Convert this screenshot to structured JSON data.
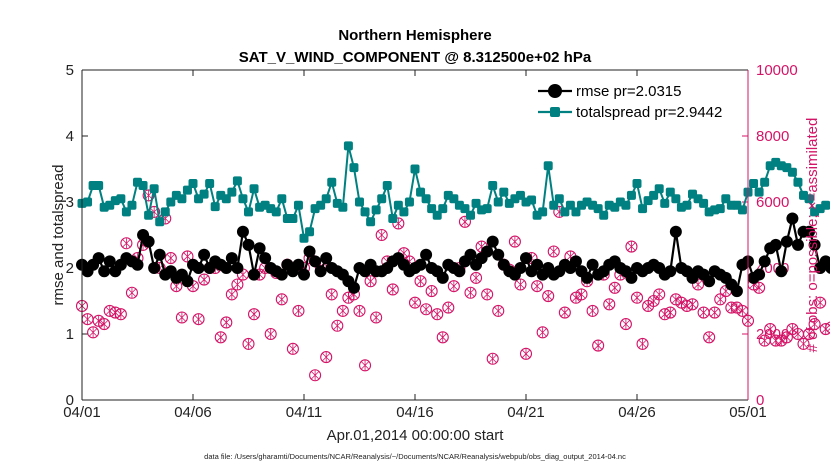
{
  "chart_data": {
    "type": "line",
    "title": "Northern Hemisphere",
    "subtitle": "SAT_V_WIND_COMPONENT @ 8.312500e+02 hPa",
    "xlabel": "Apr.01,2014 00:00:00 start",
    "ylabel": "rmse and totalspread",
    "ylabel_right": "# of obs: o=possible; ×=assimilated",
    "footnote": "data file: /Users/gharamti/Documents/NCAR/Reanalysis/~/Documents/NCAR/Reanalysis/webpub/obs_diag_output_2014-04.nc",
    "x_tick_labels": [
      "04/01",
      "04/06",
      "04/11",
      "04/16",
      "04/21",
      "04/26",
      "05/01"
    ],
    "x_tick_days": [
      0,
      5,
      10,
      15,
      20,
      25,
      30
    ],
    "xlim": [
      0,
      30
    ],
    "ylim": [
      0,
      5
    ],
    "yticks": [
      0,
      1,
      2,
      3,
      4,
      5
    ],
    "ylim_right": [
      0,
      10000
    ],
    "yticks_right": [
      0,
      2000,
      4000,
      6000,
      8000,
      10000
    ],
    "x_step_days": 0.25,
    "colors": {
      "rmse": "#000000",
      "totalspread": "#008080",
      "obs": "#d41467"
    },
    "legend": [
      {
        "name": "rmse",
        "label": "rmse pr=2.0315",
        "color": "#000000"
      },
      {
        "name": "totalspread",
        "label": "totalspread pr=2.9442",
        "color": "#008080"
      }
    ],
    "legend_position": "top-right",
    "series": [
      {
        "name": "totalspread",
        "values": [
          2.98,
          3.0,
          3.25,
          3.25,
          2.92,
          2.95,
          3.02,
          3.05,
          2.85,
          2.95,
          3.3,
          3.25,
          2.8,
          3.2,
          2.7,
          2.85,
          3.0,
          3.1,
          3.05,
          3.18,
          3.28,
          3.05,
          3.12,
          3.28,
          2.93,
          3.1,
          3.05,
          3.15,
          3.32,
          3.05,
          2.85,
          3.2,
          2.92,
          2.95,
          2.9,
          2.85,
          3.05,
          2.75,
          2.75,
          2.95,
          2.45,
          2.55,
          2.9,
          2.95,
          3.05,
          3.3,
          2.98,
          2.92,
          3.85,
          3.52,
          3.0,
          2.85,
          2.7,
          2.88,
          3.05,
          3.25,
          2.75,
          2.95,
          2.85,
          3.0,
          3.5,
          3.15,
          3.05,
          2.9,
          2.8,
          2.9,
          3.1,
          3.05,
          2.95,
          2.9,
          2.8,
          2.98,
          2.88,
          2.9,
          3.25,
          3.0,
          3.15,
          2.98,
          3.05,
          3.1,
          3.0,
          3.03,
          2.8,
          2.85,
          3.55,
          2.95,
          3.05,
          2.85,
          2.95,
          2.85,
          2.95,
          3.0,
          2.95,
          2.9,
          2.8,
          2.95,
          2.92,
          3.0,
          2.95,
          3.1,
          3.28,
          2.9,
          3.02,
          3.1,
          3.2,
          2.98,
          3.15,
          3.05,
          2.92,
          2.95,
          3.12,
          3.05,
          2.98,
          2.85,
          2.88,
          2.9,
          3.05,
          2.95,
          2.95,
          2.88,
          3.15,
          3.28,
          3.15,
          3.3,
          3.55,
          3.6,
          3.55,
          3.52,
          3.45,
          3.3,
          3.1,
          3.05,
          2.85,
          2.9,
          2.95
        ],
        "color": "#008080"
      },
      {
        "name": "rmse",
        "values": [
          2.05,
          1.95,
          2.05,
          2.15,
          1.95,
          2.1,
          1.95,
          2.05,
          2.15,
          2.1,
          2.05,
          2.5,
          2.4,
          2.0,
          2.2,
          1.9,
          1.95,
          1.85,
          1.9,
          1.8,
          2.05,
          2.0,
          2.2,
          2.0,
          2.1,
          2.05,
          2.0,
          2.15,
          2.0,
          2.55,
          2.35,
          1.9,
          2.3,
          2.15,
          2.0,
          1.95,
          1.9,
          2.05,
          1.95,
          2.05,
          1.9,
          2.25,
          2.1,
          1.95,
          2.15,
          2.0,
          1.95,
          1.9,
          1.8,
          1.7,
          2.0,
          1.95,
          2.05,
          1.95,
          1.95,
          2.0,
          2.1,
          2.15,
          2.05,
          1.95,
          2.0,
          2.05,
          2.2,
          2.0,
          1.95,
          1.85,
          2.05,
          2.0,
          1.95,
          2.1,
          2.2,
          2.05,
          2.15,
          2.25,
          2.4,
          2.2,
          2.05,
          1.95,
          1.9,
          2.0,
          2.15,
          1.95,
          2.05,
          1.9,
          2.0,
          1.9,
          1.95,
          2.05,
          2.0,
          2.1,
          1.95,
          1.85,
          2.05,
          1.9,
          1.95,
          2.05,
          2.1,
          2.0,
          1.95,
          1.85,
          2.0,
          1.95,
          2.0,
          2.05,
          2.0,
          1.9,
          1.95,
          2.55,
          2.0,
          1.95,
          1.85,
          1.95,
          1.9,
          1.8,
          1.95,
          1.9,
          1.85,
          1.75,
          1.65,
          2.05,
          2.1,
          1.85,
          1.9,
          2.1,
          2.3,
          2.35,
          1.95,
          2.4,
          2.75,
          2.35,
          2.55,
          2.55,
          2.35,
          2.0,
          2.1,
          2.0
        ],
        "color": "#000000"
      },
      {
        "name": "obs_possible",
        "values": [
          2850,
          2450,
          2050,
          2400,
          2300,
          2700,
          2650,
          2600,
          4750,
          3250,
          4300,
          4700,
          6200,
          5700,
          4000,
          5500,
          4300,
          3450,
          2500,
          4350,
          3450,
          2450,
          3650,
          4000,
          4000,
          1900,
          2350,
          3200,
          3500,
          3800,
          1700,
          2600,
          3800,
          4000,
          2000,
          3850,
          3050,
          4100,
          1550,
          2700,
          4000,
          4300,
          750,
          4050,
          1300,
          3200,
          2250,
          2700,
          3100,
          3200,
          2700,
          1050,
          3600,
          2500,
          5000,
          4200,
          3350,
          5350,
          4450,
          4200,
          2950,
          3600,
          2750,
          3300,
          2600,
          1900,
          2800,
          3450,
          4000,
          5400,
          3250,
          3700,
          4650,
          3200,
          1250,
          2700,
          4100,
          3950,
          4800,
          3500,
          1400,
          4300,
          3450,
          2050,
          3150,
          4500,
          5700,
          2650,
          4350,
          3100,
          3200,
          3600,
          2700,
          1650,
          3800,
          2900,
          3400,
          3800,
          2300,
          4650,
          3100,
          1700,
          2850,
          3000,
          3200,
          2600,
          2650,
          3050,
          2950,
          2850,
          2900,
          3500,
          2650,
          1900,
          2650,
          3050,
          3300,
          2800,
          2800,
          2700,
          2400,
          3500,
          3400,
          1800,
          2150,
          1800,
          1800,
          1900,
          2150,
          2000,
          1700,
          2000,
          2300,
          2950,
          2150,
          2200,
          2300,
          2550
        ],
        "color": "#d41467",
        "marker": "o"
      }
    ]
  }
}
